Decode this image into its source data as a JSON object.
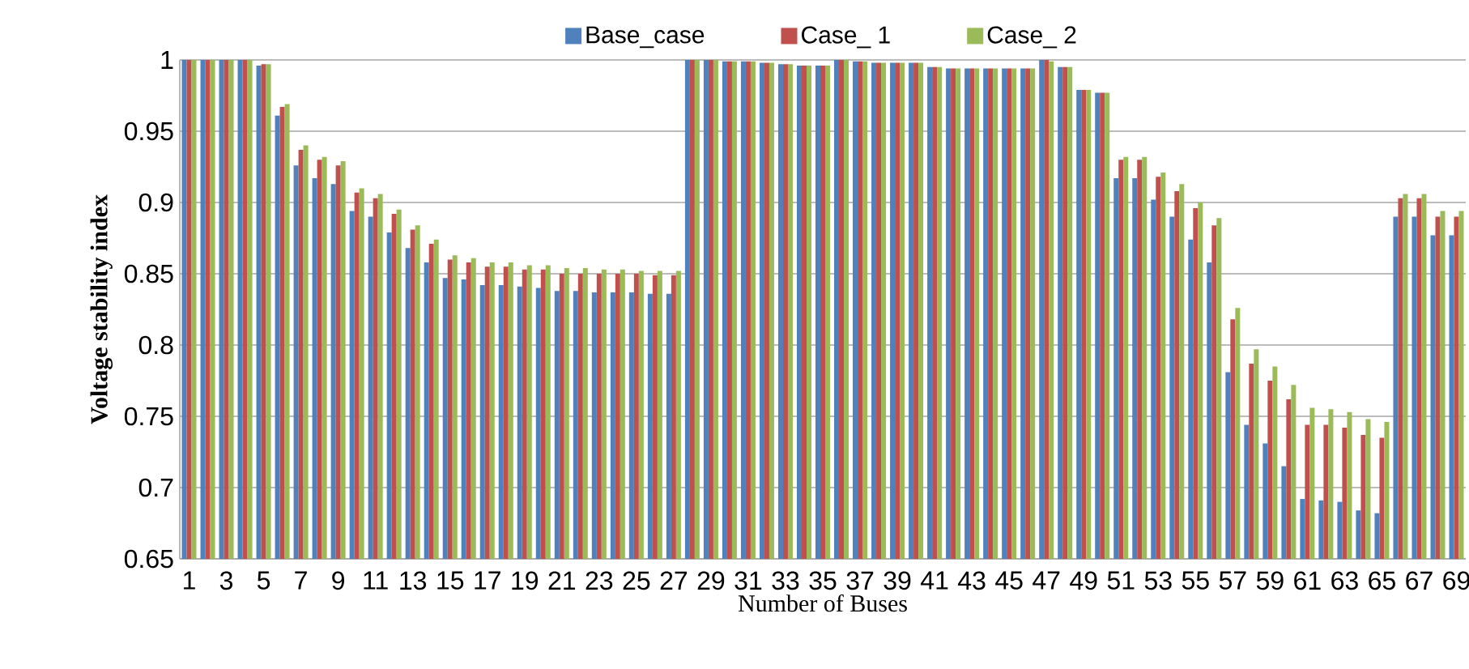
{
  "chart_data": {
    "type": "bar",
    "xlabel": "Number of Buses",
    "ylabel": "Voltage stability index",
    "categories": [
      "1",
      null,
      "3",
      null,
      "5",
      null,
      "7",
      null,
      "9",
      null,
      "11",
      null,
      "13",
      null,
      "15",
      null,
      "17",
      null,
      "19",
      null,
      "21",
      null,
      "23",
      null,
      "25",
      null,
      "27",
      null,
      "29",
      null,
      "31",
      null,
      "33",
      null,
      "35",
      null,
      "37",
      null,
      "39",
      null,
      "41",
      null,
      "43",
      null,
      "45",
      null,
      "47",
      null,
      "49",
      null,
      "51",
      null,
      "53",
      null,
      "55",
      null,
      "57",
      null,
      "59",
      null,
      "61",
      null,
      "63",
      null,
      "65",
      null,
      "67",
      null,
      "69"
    ],
    "series": [
      {
        "name": "Base_case",
        "color": "#4f81bd",
        "values": [
          1.0,
          1.0,
          1.0,
          1.0,
          0.996,
          0.961,
          0.926,
          0.917,
          0.913,
          0.894,
          0.89,
          0.879,
          0.868,
          0.858,
          0.847,
          0.846,
          0.842,
          0.842,
          0.841,
          0.84,
          0.838,
          0.838,
          0.837,
          0.837,
          0.837,
          0.836,
          0.836,
          1.0,
          1.0,
          0.999,
          0.999,
          0.998,
          0.997,
          0.996,
          0.996,
          1.0,
          0.999,
          0.998,
          0.998,
          0.998,
          0.995,
          0.994,
          0.994,
          0.994,
          0.994,
          0.994,
          1.0,
          0.995,
          0.979,
          0.977,
          0.917,
          0.917,
          0.902,
          0.89,
          0.874,
          0.858,
          0.781,
          0.744,
          0.731,
          0.715,
          0.692,
          0.691,
          0.69,
          0.684,
          0.682,
          0.89,
          0.89,
          0.877,
          0.877
        ]
      },
      {
        "name": "Case_ 1",
        "color": "#c0504d",
        "values": [
          1.0,
          1.0,
          1.0,
          1.0,
          0.997,
          0.967,
          0.937,
          0.93,
          0.926,
          0.907,
          0.903,
          0.892,
          0.881,
          0.871,
          0.86,
          0.858,
          0.855,
          0.855,
          0.853,
          0.853,
          0.85,
          0.85,
          0.85,
          0.85,
          0.85,
          0.849,
          0.849,
          1.0,
          1.0,
          0.999,
          0.999,
          0.998,
          0.997,
          0.996,
          0.996,
          1.0,
          0.999,
          0.998,
          0.998,
          0.998,
          0.995,
          0.994,
          0.994,
          0.994,
          0.994,
          0.994,
          1.0,
          0.995,
          0.979,
          0.977,
          0.93,
          0.93,
          0.918,
          0.908,
          0.896,
          0.884,
          0.818,
          0.787,
          0.775,
          0.762,
          0.744,
          0.744,
          0.742,
          0.737,
          0.735,
          0.903,
          0.903,
          0.89,
          0.89
        ]
      },
      {
        "name": "Case_ 2",
        "color": "#9bbb59",
        "values": [
          1.0,
          1.0,
          1.0,
          1.0,
          0.997,
          0.969,
          0.94,
          0.932,
          0.929,
          0.91,
          0.906,
          0.895,
          0.884,
          0.874,
          0.863,
          0.861,
          0.858,
          0.858,
          0.856,
          0.856,
          0.854,
          0.854,
          0.853,
          0.853,
          0.852,
          0.852,
          0.852,
          1.0,
          1.0,
          0.999,
          0.999,
          0.998,
          0.997,
          0.996,
          0.996,
          1.0,
          0.999,
          0.998,
          0.998,
          0.998,
          0.995,
          0.994,
          0.994,
          0.994,
          0.994,
          0.994,
          0.999,
          0.995,
          0.979,
          0.977,
          0.932,
          0.932,
          0.921,
          0.913,
          0.9,
          0.889,
          0.826,
          0.797,
          0.785,
          0.772,
          0.756,
          0.755,
          0.753,
          0.748,
          0.746,
          0.906,
          0.906,
          0.894,
          0.894
        ]
      }
    ],
    "ylim": [
      0.65,
      1
    ],
    "yticks": [
      0.65,
      0.7,
      0.75,
      0.8,
      0.85,
      0.9,
      0.95,
      1
    ],
    "grid": "y",
    "legend": "top"
  }
}
